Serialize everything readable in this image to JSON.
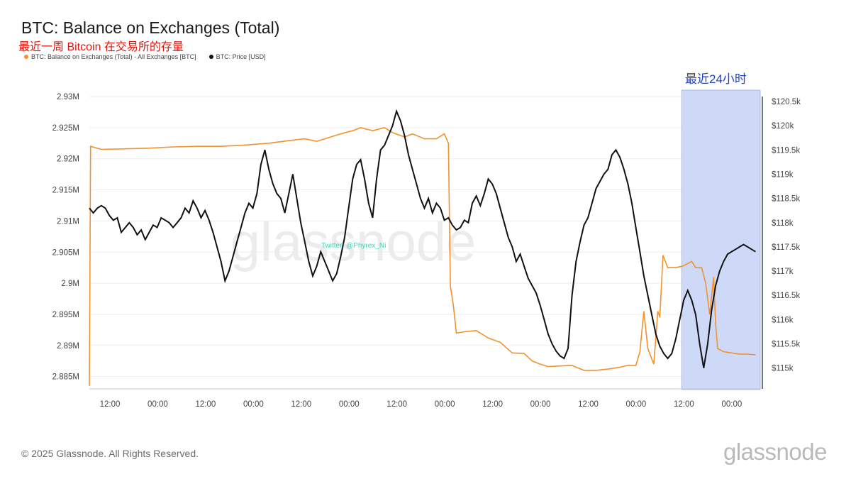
{
  "header": {
    "title": "BTC: Balance on Exchanges (Total)",
    "annotation": "最近一周 Bitcoin 在交易所的存量"
  },
  "legend": [
    {
      "label": "BTC: Balance on Exchanges (Total) - All Exchanges [BTC]",
      "color": "#f0922e"
    },
    {
      "label": "BTC: Price [USD]",
      "color": "#111111"
    }
  ],
  "highlight": {
    "label": "最近24小时",
    "color": "#c9d5f7"
  },
  "watermark": "glassnode",
  "overlay_text": "Twitter: @Phyrex_Ni",
  "footer": {
    "copyright": "© 2025 Glassnode. All Rights Reserved.",
    "brand": "glassnode"
  },
  "chart_data": {
    "type": "line",
    "x_ticks": [
      "12:00",
      "00:00",
      "12:00",
      "00:00",
      "12:00",
      "00:00",
      "12:00",
      "00:00",
      "12:00",
      "00:00",
      "12:00",
      "00:00",
      "12:00",
      "00:00"
    ],
    "x_range_hours": [
      0,
      168
    ],
    "highlight_range_hours": [
      148.5,
      168
    ],
    "left_axis": {
      "ticks": [
        "2.93M",
        "2.925M",
        "2.92M",
        "2.915M",
        "2.91M",
        "2.905M",
        "2.9M",
        "2.895M",
        "2.89M",
        "2.885M"
      ],
      "range": [
        2.8835,
        2.93
      ]
    },
    "right_axis": {
      "ticks": [
        "$120.5k",
        "$120k",
        "$119.5k",
        "$119k",
        "$118.5k",
        "$118k",
        "$117.5k",
        "$117k",
        "$116.5k",
        "$116k",
        "$115.5k",
        "$115k"
      ],
      "range": [
        114.55,
        120.5
      ]
    },
    "series": [
      {
        "name": "BTC: Balance on Exchanges (Total) - All Exchanges [BTC]",
        "axis": "left",
        "color": "#f0922e",
        "points": [
          [
            0,
            2.8835
          ],
          [
            0.3,
            2.922
          ],
          [
            3,
            2.9215
          ],
          [
            9,
            2.9216
          ],
          [
            15,
            2.9217
          ],
          [
            21,
            2.9219
          ],
          [
            27,
            2.922
          ],
          [
            33,
            2.922
          ],
          [
            39,
            2.9222
          ],
          [
            45,
            2.9225
          ],
          [
            51,
            2.923
          ],
          [
            54,
            2.9232
          ],
          [
            57,
            2.9228
          ],
          [
            59,
            2.9232
          ],
          [
            63,
            2.924
          ],
          [
            66,
            2.9245
          ],
          [
            68,
            2.925
          ],
          [
            71,
            2.9245
          ],
          [
            74,
            2.925
          ],
          [
            76,
            2.9242
          ],
          [
            79,
            2.9235
          ],
          [
            81,
            2.924
          ],
          [
            84,
            2.9232
          ],
          [
            87,
            2.9232
          ],
          [
            89,
            2.924
          ],
          [
            90,
            2.9225
          ],
          [
            90.5,
            2.8995
          ],
          [
            91.2,
            2.8967
          ],
          [
            92,
            2.892
          ],
          [
            94,
            2.8922
          ],
          [
            97,
            2.8924
          ],
          [
            100,
            2.8912
          ],
          [
            103,
            2.8905
          ],
          [
            106,
            2.8888
          ],
          [
            109,
            2.8887
          ],
          [
            111,
            2.8875
          ],
          [
            113,
            2.887
          ],
          [
            115,
            2.8866
          ],
          [
            118,
            2.8867
          ],
          [
            121,
            2.8868
          ],
          [
            124,
            2.886
          ],
          [
            127,
            2.886
          ],
          [
            130,
            2.8862
          ],
          [
            133,
            2.8865
          ],
          [
            135,
            2.8868
          ],
          [
            137,
            2.8868
          ],
          [
            138,
            2.889
          ],
          [
            139,
            2.8955
          ],
          [
            140,
            2.8895
          ],
          [
            141.5,
            2.887
          ],
          [
            142.5,
            2.8955
          ],
          [
            143,
            2.8945
          ],
          [
            143.8,
            2.9045
          ],
          [
            145,
            2.9025
          ],
          [
            147,
            2.9025
          ],
          [
            149,
            2.9028
          ],
          [
            151,
            2.9035
          ],
          [
            152,
            2.9025
          ],
          [
            153.5,
            2.9025
          ],
          [
            154.5,
            2.9
          ],
          [
            155.5,
            2.895
          ],
          [
            156.5,
            2.901
          ],
          [
            157,
            2.8935
          ],
          [
            157.5,
            2.8895
          ],
          [
            159,
            2.889
          ],
          [
            161,
            2.8888
          ],
          [
            163,
            2.8886
          ],
          [
            165,
            2.8886
          ],
          [
            167,
            2.8885
          ]
        ]
      },
      {
        "name": "BTC: Price [USD]",
        "axis": "right",
        "color": "#111111",
        "points": [
          [
            0,
            118.3
          ],
          [
            1,
            118.2
          ],
          [
            2,
            118.3
          ],
          [
            3,
            118.35
          ],
          [
            4,
            118.3
          ],
          [
            5,
            118.15
          ],
          [
            6,
            118.05
          ],
          [
            7,
            118.1
          ],
          [
            8,
            117.8
          ],
          [
            9,
            117.9
          ],
          [
            10,
            118.0
          ],
          [
            11,
            117.9
          ],
          [
            12,
            117.75
          ],
          [
            13,
            117.85
          ],
          [
            14,
            117.65
          ],
          [
            15,
            117.8
          ],
          [
            16,
            117.95
          ],
          [
            17,
            117.9
          ],
          [
            18,
            118.1
          ],
          [
            19,
            118.05
          ],
          [
            20,
            118.0
          ],
          [
            21,
            117.9
          ],
          [
            22,
            118.0
          ],
          [
            23,
            118.1
          ],
          [
            24,
            118.3
          ],
          [
            25,
            118.2
          ],
          [
            26,
            118.45
          ],
          [
            27,
            118.3
          ],
          [
            28,
            118.1
          ],
          [
            29,
            118.25
          ],
          [
            30,
            118.05
          ],
          [
            31,
            117.8
          ],
          [
            32,
            117.5
          ],
          [
            33,
            117.2
          ],
          [
            34,
            116.8
          ],
          [
            35,
            117.0
          ],
          [
            36,
            117.3
          ],
          [
            37,
            117.6
          ],
          [
            38,
            117.9
          ],
          [
            39,
            118.2
          ],
          [
            40,
            118.4
          ],
          [
            41,
            118.3
          ],
          [
            42,
            118.6
          ],
          [
            43,
            119.2
          ],
          [
            44,
            119.5
          ],
          [
            45,
            119.1
          ],
          [
            46,
            118.8
          ],
          [
            47,
            118.6
          ],
          [
            48,
            118.5
          ],
          [
            49,
            118.2
          ],
          [
            50,
            118.6
          ],
          [
            51,
            119.0
          ],
          [
            52,
            118.5
          ],
          [
            53,
            118.0
          ],
          [
            54,
            117.6
          ],
          [
            55,
            117.2
          ],
          [
            56,
            116.9
          ],
          [
            57,
            117.1
          ],
          [
            58,
            117.4
          ],
          [
            59,
            117.2
          ],
          [
            60,
            117.0
          ],
          [
            61,
            116.8
          ],
          [
            62,
            116.95
          ],
          [
            63,
            117.3
          ],
          [
            64,
            117.7
          ],
          [
            65,
            118.3
          ],
          [
            66,
            118.9
          ],
          [
            67,
            119.2
          ],
          [
            68,
            119.3
          ],
          [
            69,
            118.9
          ],
          [
            70,
            118.4
          ],
          [
            71,
            118.1
          ],
          [
            72,
            118.9
          ],
          [
            73,
            119.5
          ],
          [
            74,
            119.6
          ],
          [
            75,
            119.8
          ],
          [
            76,
            120.0
          ],
          [
            77,
            120.3
          ],
          [
            78,
            120.1
          ],
          [
            79,
            119.8
          ],
          [
            80,
            119.4
          ],
          [
            81,
            119.1
          ],
          [
            82,
            118.8
          ],
          [
            83,
            118.5
          ],
          [
            84,
            118.3
          ],
          [
            85,
            118.5
          ],
          [
            86,
            118.2
          ],
          [
            87,
            118.4
          ],
          [
            88,
            118.3
          ],
          [
            89,
            118.05
          ],
          [
            90,
            118.1
          ],
          [
            91,
            117.95
          ],
          [
            92,
            117.85
          ],
          [
            93,
            117.9
          ],
          [
            94,
            118.05
          ],
          [
            95,
            118.0
          ],
          [
            96,
            118.4
          ],
          [
            97,
            118.55
          ],
          [
            98,
            118.35
          ],
          [
            99,
            118.6
          ],
          [
            100,
            118.9
          ],
          [
            101,
            118.8
          ],
          [
            102,
            118.6
          ],
          [
            103,
            118.3
          ],
          [
            104,
            118.0
          ],
          [
            105,
            117.7
          ],
          [
            106,
            117.5
          ],
          [
            107,
            117.2
          ],
          [
            108,
            117.35
          ],
          [
            109,
            117.1
          ],
          [
            110,
            116.85
          ],
          [
            111,
            116.7
          ],
          [
            112,
            116.55
          ],
          [
            113,
            116.3
          ],
          [
            114,
            116.0
          ],
          [
            115,
            115.7
          ],
          [
            116,
            115.5
          ],
          [
            117,
            115.35
          ],
          [
            118,
            115.25
          ],
          [
            119,
            115.2
          ],
          [
            120,
            115.4
          ],
          [
            121,
            116.5
          ],
          [
            122,
            117.2
          ],
          [
            123,
            117.6
          ],
          [
            124,
            117.95
          ],
          [
            125,
            118.1
          ],
          [
            126,
            118.4
          ],
          [
            127,
            118.7
          ],
          [
            128,
            118.85
          ],
          [
            129,
            119.0
          ],
          [
            130,
            119.1
          ],
          [
            131,
            119.4
          ],
          [
            132,
            119.5
          ],
          [
            133,
            119.35
          ],
          [
            134,
            119.1
          ],
          [
            135,
            118.8
          ],
          [
            136,
            118.4
          ],
          [
            137,
            117.9
          ],
          [
            138,
            117.4
          ],
          [
            139,
            116.9
          ],
          [
            140,
            116.5
          ],
          [
            141,
            116.1
          ],
          [
            142,
            115.7
          ],
          [
            143,
            115.45
          ],
          [
            144,
            115.3
          ],
          [
            145,
            115.2
          ],
          [
            146,
            115.3
          ],
          [
            147,
            115.6
          ],
          [
            148,
            116.0
          ],
          [
            149,
            116.4
          ],
          [
            150,
            116.6
          ],
          [
            151,
            116.4
          ],
          [
            152,
            116.1
          ],
          [
            153,
            115.5
          ],
          [
            154,
            115.0
          ],
          [
            155,
            115.5
          ],
          [
            156,
            116.2
          ],
          [
            157,
            116.7
          ],
          [
            158,
            117.0
          ],
          [
            159,
            117.2
          ],
          [
            160,
            117.35
          ],
          [
            161,
            117.4
          ],
          [
            162,
            117.45
          ],
          [
            163,
            117.5
          ],
          [
            164,
            117.55
          ],
          [
            165,
            117.5
          ],
          [
            166,
            117.45
          ],
          [
            167,
            117.4
          ]
        ]
      }
    ]
  }
}
